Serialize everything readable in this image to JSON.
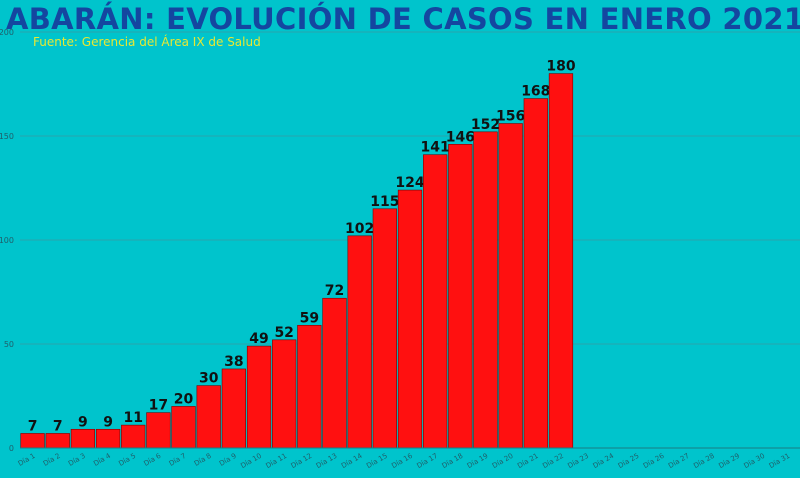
{
  "chart_data": {
    "type": "bar",
    "title": "ABARÁN: EVOLUCIÓN DE CASOS EN ENERO 2021",
    "subtitle": "Fuente: Gerencia  del Área IX de Salud",
    "xlabel": "",
    "ylabel": "",
    "ylim": [
      0,
      200
    ],
    "yticks": [
      "0",
      "50",
      "100",
      "150",
      "200"
    ],
    "grid": true,
    "categories": [
      "Día 1",
      "Día 2",
      "Día 3",
      "Día 4",
      "Día 5",
      "Día 6",
      "Día 7",
      "Día 8",
      "Día 9",
      "Día 10",
      "Día 11",
      "Día 12",
      "Día 13",
      "Día 14",
      "Día 15",
      "Día 16",
      "Día 17",
      "Día 18",
      "Día 19",
      "Día 20",
      "Día 21",
      "Día 22",
      "Día 23",
      "Día 24",
      "Día 25",
      "Día 26",
      "Día 27",
      "Día 28",
      "Día 29",
      "Día 30",
      "Día 31"
    ],
    "values": [
      7,
      7,
      9,
      9,
      11,
      17,
      20,
      30,
      38,
      49,
      52,
      59,
      72,
      102,
      115,
      124,
      141,
      146,
      152,
      156,
      168,
      180,
      null,
      null,
      null,
      null,
      null,
      null,
      null,
      null,
      null
    ],
    "colors": {
      "background": "#00c4cc",
      "bar": "#ff1010",
      "bar_edge": "#7a0000",
      "title": "#1446a0",
      "subtitle": "#e8e832",
      "label": "#111111",
      "axis_text": "#1f5f6a",
      "grid": "#2aa3ab"
    }
  }
}
